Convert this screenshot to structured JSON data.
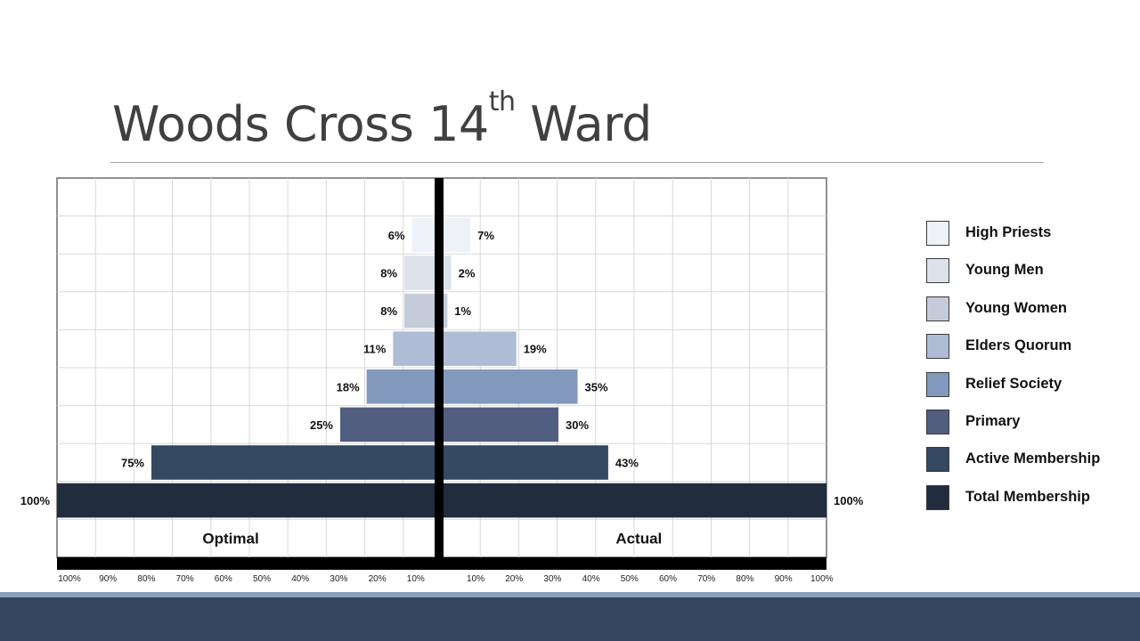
{
  "slide": {
    "title": "Woods Cross 14",
    "title_superscript": "th",
    "title_suffix": " Ward"
  },
  "chart_data": {
    "type": "bar",
    "orientation": "horizontal-butterfly",
    "categories": [
      "High Priests",
      "Young Men",
      "Young Women",
      "Elders Quorum",
      "Relief Society",
      "Primary",
      "Active Membership",
      "Total Membership"
    ],
    "series": [
      {
        "name": "Optimal",
        "side": "left",
        "values": [
          6,
          8,
          8,
          11,
          18,
          25,
          75,
          100
        ]
      },
      {
        "name": "Actual",
        "side": "right",
        "values": [
          7,
          2,
          1,
          19,
          35,
          30,
          43,
          100
        ]
      }
    ],
    "value_labels": {
      "Optimal": [
        "6%",
        "8%",
        "8%",
        "11%",
        "18%",
        "25%",
        "75%",
        "100%"
      ],
      "Actual": [
        "7%",
        "2%",
        "1%",
        "19%",
        "35%",
        "30%",
        "43%",
        "100%"
      ]
    },
    "left_ticks": [
      "100%",
      "90%",
      "80%",
      "70%",
      "60%",
      "50%",
      "40%",
      "30%",
      "20%",
      "10%"
    ],
    "right_ticks": [
      "10%",
      "20%",
      "30%",
      "40%",
      "50%",
      "60%",
      "70%",
      "80%",
      "90%",
      "100%"
    ],
    "xlim": [
      0,
      100
    ],
    "grid": true,
    "legend_placement": "right",
    "colors": [
      "#eef2f8",
      "#dde2ea",
      "#c5cbd9",
      "#aebcd5",
      "#8299bd",
      "#525e7f",
      "#354862",
      "#222c3f"
    ]
  },
  "theme": {
    "footer_band": "#35475f",
    "footer_line": "#8aa0bd"
  }
}
